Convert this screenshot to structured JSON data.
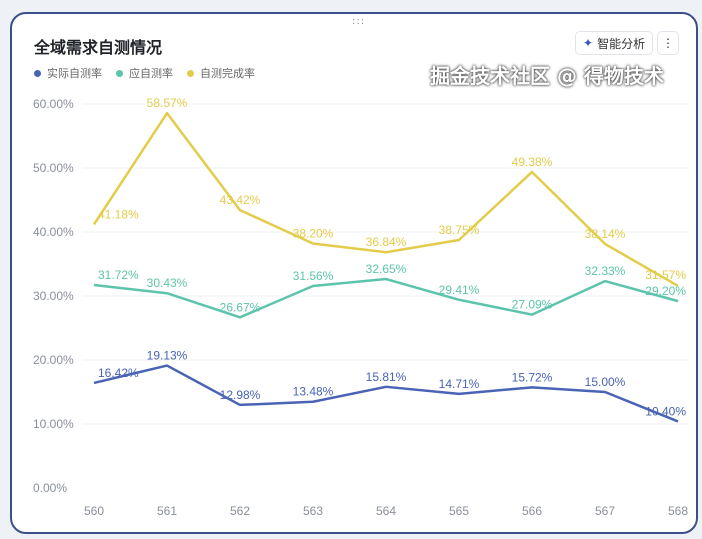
{
  "header": {
    "title": "全域需求自测情况",
    "ai_button": "智能分析",
    "ai_icon": "sparkle-icon",
    "more_icon": "more-vertical-icon",
    "drag_handle": ":::"
  },
  "watermark": "掘金技术社区 @ 得物技术",
  "chart_data": {
    "type": "line",
    "categories": [
      "560",
      "561",
      "562",
      "563",
      "564",
      "565",
      "566",
      "567",
      "568"
    ],
    "ylim": [
      0,
      60
    ],
    "yticks": [
      "0.00%",
      "10.00%",
      "20.00%",
      "30.00%",
      "40.00%",
      "50.00%",
      "60.00%"
    ],
    "grid": true,
    "legend_position": "top-left",
    "series": [
      {
        "name": "实际自测率",
        "color": "#4a63b5",
        "values": [
          16.42,
          19.13,
          12.98,
          13.48,
          15.81,
          14.71,
          15.72,
          15.0,
          10.4
        ]
      },
      {
        "name": "应自测率",
        "color": "#5cc4aa",
        "values": [
          31.72,
          30.43,
          26.67,
          31.56,
          32.65,
          29.41,
          27.09,
          32.33,
          29.2
        ]
      },
      {
        "name": "自测完成率",
        "color": "#e3cc4a",
        "values": [
          41.18,
          58.57,
          43.42,
          38.2,
          36.84,
          38.75,
          49.38,
          38.14,
          31.57
        ]
      }
    ]
  }
}
